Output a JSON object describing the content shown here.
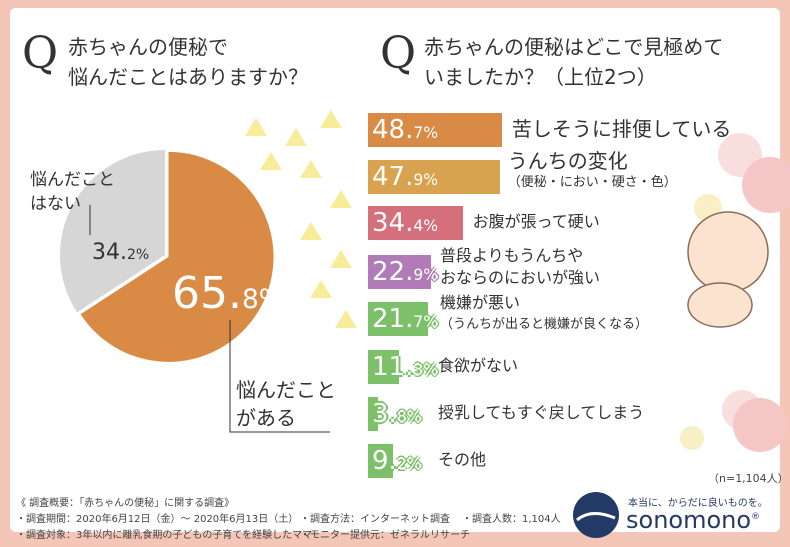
{
  "left": {
    "q": "Q",
    "title_1": "赤ちゃんの便秘で",
    "title_2": "悩んだことはありますか？",
    "pie": [
      {
        "label_1": "悩んだこと",
        "label_2": "がある",
        "int": "65.",
        "dec": "8%",
        "value": 65.8,
        "color": "#d98a45"
      },
      {
        "label_1": "悩んだこと",
        "label_2": "はない",
        "int": "34.",
        "dec": "2%",
        "value": 34.2,
        "color": "#d6d6d6"
      }
    ]
  },
  "right": {
    "q": "Q",
    "title_1": "赤ちゃんの便秘はどこで見極めて",
    "title_2": "いましたか？（上位2つ）",
    "items": [
      {
        "int": "48.",
        "dec": "7%",
        "value": 48.7,
        "label": "苦しそうに排便している",
        "sub": "",
        "color": "#d98a45"
      },
      {
        "int": "47.",
        "dec": "9%",
        "value": 47.9,
        "label": "うんちの変化",
        "sub": "（便秘・におい・硬さ・色）",
        "color": "#d9a24e"
      },
      {
        "int": "34.",
        "dec": "4%",
        "value": 34.4,
        "label": "お腹が張って硬い",
        "sub": "",
        "color": "#d56f7c"
      },
      {
        "int": "22.",
        "dec": "9%",
        "value": 22.9,
        "label": "普段よりもうんちや",
        "sub": "おならのにおいが強い",
        "color": "#b07bb6"
      },
      {
        "int": "21.",
        "dec": "7%",
        "value": 21.7,
        "label": "機嫌が悪い",
        "sub": "（うんちが出ると機嫌が良くなる）",
        "color": "#7cc06a"
      },
      {
        "int": "11.",
        "dec": "3%",
        "value": 11.3,
        "label": "食欲がない",
        "sub": "",
        "color": "#7cc06a"
      },
      {
        "int": "3.",
        "dec": "8%",
        "value": 3.8,
        "label": "授乳してもすぐ戻してしまう",
        "sub": "",
        "color": "#7cc06a"
      },
      {
        "int": "9.",
        "dec": "2%",
        "value": 9.2,
        "label": "その他",
        "sub": "",
        "color": "#7cc06a"
      }
    ],
    "n": "（n=1,104人）"
  },
  "footer": {
    "title": "《 調査概要：「赤ちゃんの便秘」に関する調査》",
    "period": "・調査期間：2020年6月12日（金）～ 2020年6月13日（土）",
    "method": "・調査方法：インターネット調査",
    "count": "・調査人数：1,104人",
    "target": "・調査対象：3年以内に離乳食期の子どもの子育てを経験したママ",
    "provider": "・モニター提供元：ゼネラルリサーチ"
  },
  "brand": {
    "tagline": "本当に、からだに良いものを。",
    "name": "sonomono",
    "mark": "®"
  }
}
